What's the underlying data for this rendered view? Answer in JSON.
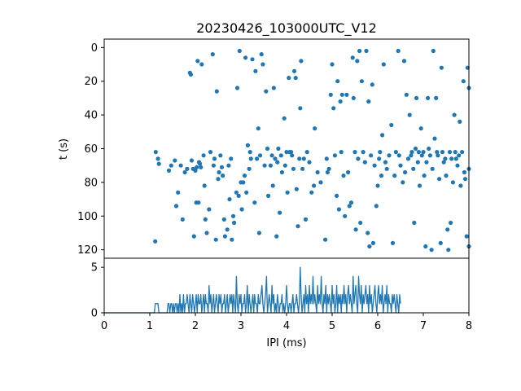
{
  "chart_data": [
    {
      "type": "scatter",
      "title": "20230426_103000UTC_V12",
      "xlabel": "",
      "ylabel": "t (s)",
      "xlim": [
        0,
        8
      ],
      "ylim": [
        125,
        -5
      ],
      "y_inverted": true,
      "grid": false,
      "x_ticks_shown": false,
      "yticks": [
        0,
        20,
        40,
        60,
        80,
        100,
        120
      ],
      "color": "#1f77b4",
      "points": [
        [
          1.12,
          115
        ],
        [
          1.13,
          62
        ],
        [
          1.18,
          66
        ],
        [
          1.2,
          69
        ],
        [
          1.42,
          73
        ],
        [
          1.47,
          70
        ],
        [
          1.55,
          67
        ],
        [
          1.58,
          94
        ],
        [
          1.62,
          86
        ],
        [
          1.68,
          70
        ],
        [
          1.72,
          102
        ],
        [
          1.77,
          74
        ],
        [
          1.82,
          72
        ],
        [
          1.88,
          15
        ],
        [
          1.9,
          16
        ],
        [
          1.92,
          67
        ],
        [
          1.95,
          72
        ],
        [
          1.97,
          112
        ],
        [
          2.0,
          73
        ],
        [
          2.02,
          92
        ],
        [
          2.03,
          71
        ],
        [
          2.05,
          8
        ],
        [
          2.07,
          92
        ],
        [
          2.08,
          68
        ],
        [
          2.1,
          69
        ],
        [
          2.12,
          71
        ],
        [
          2.14,
          10
        ],
        [
          2.18,
          64
        ],
        [
          2.2,
          82
        ],
        [
          2.22,
          102
        ],
        [
          2.25,
          110
        ],
        [
          2.3,
          96
        ],
        [
          2.33,
          62
        ],
        [
          2.38,
          4
        ],
        [
          2.4,
          70
        ],
        [
          2.42,
          66
        ],
        [
          2.45,
          114
        ],
        [
          2.47,
          26
        ],
        [
          2.5,
          78
        ],
        [
          2.52,
          74
        ],
        [
          2.55,
          64
        ],
        [
          2.58,
          71
        ],
        [
          2.6,
          76
        ],
        [
          2.63,
          102
        ],
        [
          2.65,
          112
        ],
        [
          2.7,
          108
        ],
        [
          2.73,
          70
        ],
        [
          2.75,
          90
        ],
        [
          2.78,
          66
        ],
        [
          2.8,
          114
        ],
        [
          2.83,
          100
        ],
        [
          2.85,
          104
        ],
        [
          2.9,
          86
        ],
        [
          2.92,
          24
        ],
        [
          2.95,
          88
        ],
        [
          2.97,
          2
        ],
        [
          3.0,
          80
        ],
        [
          3.02,
          96
        ],
        [
          3.05,
          80
        ],
        [
          3.08,
          76
        ],
        [
          3.1,
          6
        ],
        [
          3.12,
          86
        ],
        [
          3.15,
          58
        ],
        [
          3.18,
          72
        ],
        [
          3.2,
          62
        ],
        [
          3.22,
          66
        ],
        [
          3.25,
          7
        ],
        [
          3.3,
          92
        ],
        [
          3.32,
          14
        ],
        [
          3.35,
          66
        ],
        [
          3.38,
          48
        ],
        [
          3.4,
          110
        ],
        [
          3.42,
          64
        ],
        [
          3.45,
          4
        ],
        [
          3.48,
          10
        ],
        [
          3.52,
          70
        ],
        [
          3.55,
          26
        ],
        [
          3.58,
          60
        ],
        [
          3.6,
          88
        ],
        [
          3.65,
          70
        ],
        [
          3.68,
          64
        ],
        [
          3.7,
          82
        ],
        [
          3.72,
          24
        ],
        [
          3.75,
          66
        ],
        [
          3.78,
          112
        ],
        [
          3.8,
          68
        ],
        [
          3.82,
          60
        ],
        [
          3.85,
          98
        ],
        [
          3.88,
          64
        ],
        [
          3.9,
          74
        ],
        [
          3.95,
          42
        ],
        [
          3.97,
          70
        ],
        [
          4.0,
          62
        ],
        [
          4.02,
          86
        ],
        [
          4.05,
          18
        ],
        [
          4.07,
          62
        ],
        [
          4.1,
          62
        ],
        [
          4.12,
          64
        ],
        [
          4.15,
          72
        ],
        [
          4.17,
          14
        ],
        [
          4.2,
          18
        ],
        [
          4.22,
          84
        ],
        [
          4.25,
          106
        ],
        [
          4.28,
          66
        ],
        [
          4.3,
          36
        ],
        [
          4.32,
          8
        ],
        [
          4.35,
          72
        ],
        [
          4.38,
          66
        ],
        [
          4.42,
          102
        ],
        [
          4.45,
          62
        ],
        [
          4.5,
          68
        ],
        [
          4.55,
          86
        ],
        [
          4.6,
          82
        ],
        [
          4.62,
          48
        ],
        [
          4.68,
          74
        ],
        [
          4.75,
          80
        ],
        [
          4.85,
          114
        ],
        [
          4.88,
          66
        ],
        [
          4.9,
          74
        ],
        [
          4.93,
          72
        ],
        [
          4.97,
          28
        ],
        [
          5.0,
          10
        ],
        [
          5.03,
          36
        ],
        [
          5.06,
          64
        ],
        [
          5.1,
          88
        ],
        [
          5.12,
          20
        ],
        [
          5.15,
          96
        ],
        [
          5.18,
          32
        ],
        [
          5.2,
          62
        ],
        [
          5.22,
          28
        ],
        [
          5.25,
          76
        ],
        [
          5.28,
          100
        ],
        [
          5.32,
          28
        ],
        [
          5.35,
          74
        ],
        [
          5.38,
          94
        ],
        [
          5.42,
          92
        ],
        [
          5.45,
          6
        ],
        [
          5.47,
          30
        ],
        [
          5.5,
          62
        ],
        [
          5.52,
          108
        ],
        [
          5.55,
          8
        ],
        [
          5.57,
          66
        ],
        [
          5.6,
          2
        ],
        [
          5.62,
          104
        ],
        [
          5.65,
          20
        ],
        [
          5.68,
          62
        ],
        [
          5.72,
          68
        ],
        [
          5.75,
          2
        ],
        [
          5.78,
          110
        ],
        [
          5.8,
          32
        ],
        [
          5.82,
          118
        ],
        [
          5.85,
          64
        ],
        [
          5.88,
          22
        ],
        [
          5.9,
          116
        ],
        [
          5.93,
          70
        ],
        [
          5.97,
          94
        ],
        [
          6.0,
          82
        ],
        [
          6.03,
          66
        ],
        [
          6.05,
          62
        ],
        [
          6.08,
          76
        ],
        [
          6.1,
          52
        ],
        [
          6.13,
          10
        ],
        [
          6.17,
          68
        ],
        [
          6.2,
          72
        ],
        [
          6.25,
          64
        ],
        [
          6.3,
          46
        ],
        [
          6.33,
          116
        ],
        [
          6.37,
          76
        ],
        [
          6.4,
          62
        ],
        [
          6.45,
          2
        ],
        [
          6.47,
          64
        ],
        [
          6.5,
          70
        ],
        [
          6.55,
          80
        ],
        [
          6.58,
          8
        ],
        [
          6.6,
          74
        ],
        [
          6.63,
          28
        ],
        [
          6.67,
          66
        ],
        [
          6.7,
          40
        ],
        [
          6.73,
          64
        ],
        [
          6.75,
          62
        ],
        [
          6.78,
          72
        ],
        [
          6.8,
          104
        ],
        [
          6.83,
          60
        ],
        [
          6.85,
          30
        ],
        [
          6.88,
          68
        ],
        [
          6.9,
          62
        ],
        [
          6.92,
          82
        ],
        [
          6.95,
          48
        ],
        [
          6.97,
          64
        ],
        [
          7.0,
          62
        ],
        [
          7.02,
          76
        ],
        [
          7.05,
          118
        ],
        [
          7.07,
          68
        ],
        [
          7.1,
          30
        ],
        [
          7.12,
          60
        ],
        [
          7.15,
          64
        ],
        [
          7.18,
          120
        ],
        [
          7.2,
          72
        ],
        [
          7.22,
          2
        ],
        [
          7.25,
          54
        ],
        [
          7.28,
          30
        ],
        [
          7.3,
          62
        ],
        [
          7.32,
          64
        ],
        [
          7.35,
          78
        ],
        [
          7.38,
          116
        ],
        [
          7.4,
          12
        ],
        [
          7.42,
          62
        ],
        [
          7.45,
          68
        ],
        [
          7.48,
          66
        ],
        [
          7.5,
          76
        ],
        [
          7.53,
          108
        ],
        [
          7.55,
          120
        ],
        [
          7.58,
          62
        ],
        [
          7.6,
          104
        ],
        [
          7.62,
          66
        ],
        [
          7.65,
          80
        ],
        [
          7.68,
          40
        ],
        [
          7.7,
          62
        ],
        [
          7.72,
          66
        ],
        [
          7.75,
          70
        ],
        [
          7.78,
          64
        ],
        [
          7.8,
          44
        ],
        [
          7.82,
          82
        ],
        [
          7.85,
          62
        ],
        [
          7.88,
          20
        ],
        [
          7.9,
          74
        ],
        [
          7.92,
          78
        ],
        [
          7.95,
          112
        ],
        [
          7.97,
          12
        ],
        [
          8.0,
          24
        ],
        [
          8.0,
          72
        ],
        [
          8.0,
          118
        ]
      ]
    },
    {
      "type": "line",
      "title": "",
      "xlabel": "IPI (ms)",
      "ylabel": "",
      "xlim": [
        0,
        8
      ],
      "ylim": [
        0,
        6
      ],
      "grid": false,
      "xticks": [
        0,
        1,
        2,
        3,
        4,
        5,
        6,
        7,
        8
      ],
      "yticks": [
        0,
        5
      ],
      "color": "#1f77b4",
      "x_start": 0,
      "x_step": 0.02,
      "values": [
        0,
        0,
        0,
        0,
        0,
        0,
        0,
        0,
        0,
        0,
        0,
        0,
        0,
        0,
        0,
        0,
        0,
        0,
        0,
        0,
        0,
        0,
        0,
        0,
        0,
        0,
        0,
        0,
        0,
        0,
        0,
        0,
        0,
        0,
        0,
        0,
        0,
        0,
        0,
        0,
        0,
        0,
        0,
        0,
        0,
        0,
        0,
        0,
        0,
        0,
        0,
        0,
        0,
        0,
        0,
        0,
        1,
        1,
        1,
        1,
        0,
        0,
        0,
        0,
        0,
        0,
        0,
        0,
        0,
        0,
        1,
        1,
        0,
        1,
        1,
        0,
        1,
        0,
        1,
        1,
        0,
        1,
        0,
        2,
        0,
        1,
        0,
        2,
        0,
        1,
        1,
        2,
        1,
        0,
        2,
        1,
        0,
        2,
        1,
        0,
        1,
        2,
        0,
        2,
        1,
        1,
        2,
        0,
        1,
        2,
        0,
        2,
        1,
        1,
        0,
        3,
        1,
        2,
        0,
        1,
        2,
        0,
        1,
        2,
        1,
        0,
        2,
        1,
        2,
        0,
        1,
        1,
        2,
        0,
        1,
        2,
        0,
        1,
        2,
        1,
        2,
        0,
        2,
        1,
        0,
        4,
        1,
        0,
        2,
        1,
        2,
        0,
        1,
        1,
        2,
        0,
        1,
        3,
        0,
        2,
        1,
        0,
        1,
        2,
        0,
        2,
        1,
        1,
        0,
        2,
        1,
        1,
        2,
        3,
        1,
        0,
        1,
        2,
        4,
        0,
        1,
        2,
        1,
        0,
        3,
        1,
        2,
        0,
        1,
        0,
        2,
        1,
        0,
        1,
        1,
        2,
        0,
        1,
        0,
        1,
        3,
        1,
        0,
        1,
        1,
        0,
        1,
        2,
        0,
        1,
        1,
        2,
        1,
        0,
        1,
        5,
        2,
        0,
        1,
        2,
        0,
        3,
        1,
        2,
        0,
        3,
        1,
        2,
        1,
        4,
        1,
        2,
        1,
        0,
        3,
        1,
        2,
        1,
        4,
        1,
        0,
        2,
        1,
        3,
        0,
        2,
        1,
        2,
        1,
        0,
        3,
        1,
        2,
        0,
        1,
        3,
        0,
        2,
        1,
        2,
        0,
        2,
        1,
        3,
        1,
        2,
        0,
        2,
        3,
        1,
        2,
        1,
        0,
        4,
        1,
        2,
        3,
        1,
        0,
        4,
        2,
        1,
        3,
        0,
        2,
        1,
        2,
        3,
        1,
        2,
        0,
        3,
        1,
        2,
        0,
        1,
        2,
        3,
        1,
        0,
        2,
        3,
        1,
        2,
        1,
        3,
        0,
        1,
        2,
        1,
        3,
        0,
        2,
        1,
        1,
        0,
        2,
        1,
        2,
        1,
        0,
        2,
        1,
        0,
        2,
        1
      ]
    }
  ]
}
